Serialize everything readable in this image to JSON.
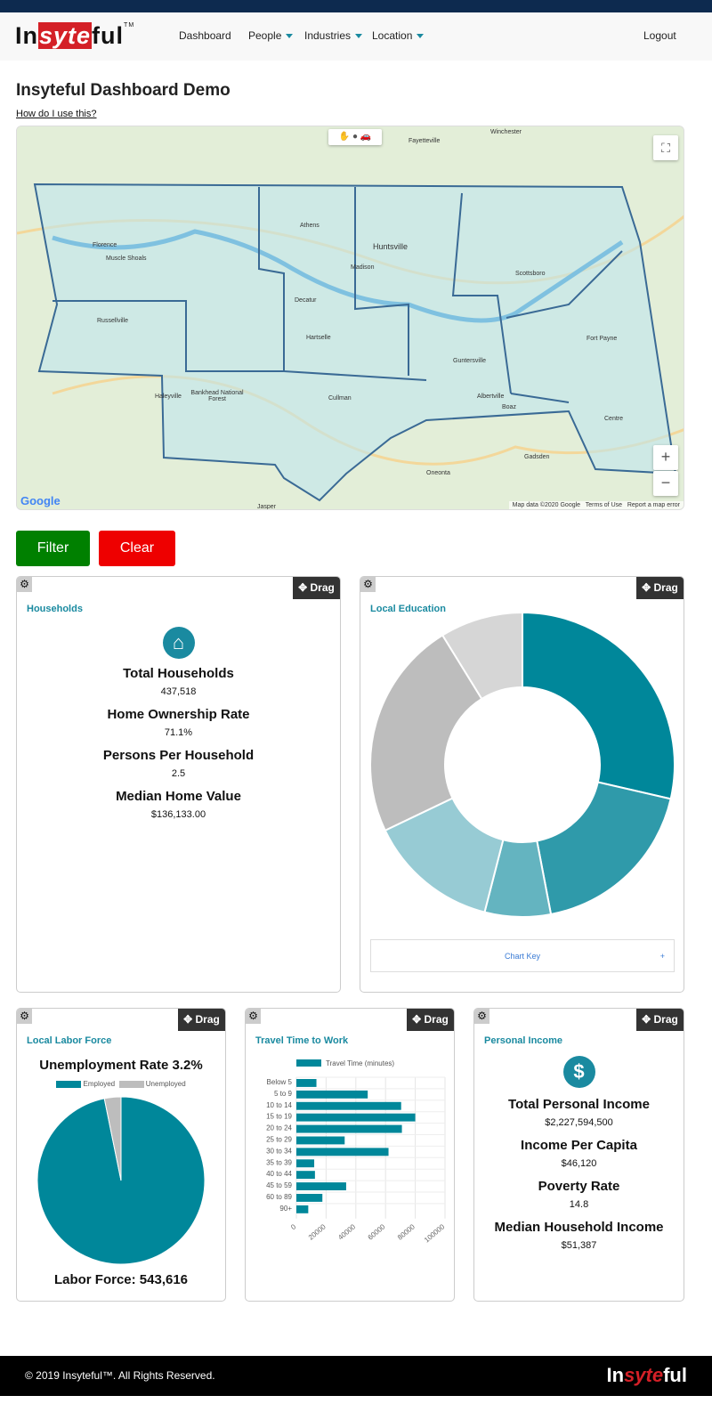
{
  "nav": {
    "logo": "Insyteful",
    "items": [
      "Dashboard",
      "People",
      "Industries",
      "Location"
    ],
    "logout": "Logout"
  },
  "page": {
    "title": "Insyteful Dashboard Demo",
    "help_link": "How do I use this?"
  },
  "map": {
    "places": [
      "Florence",
      "Muscle Shoals",
      "Athens",
      "Huntsville",
      "Decatur",
      "Scottsboro",
      "Cullman",
      "Guntersville",
      "Fort Payne",
      "Gadsden",
      "Albertville",
      "Russellville",
      "Haleyville",
      "Bankhead National Forest",
      "Jasper",
      "Oneonta",
      "Fayetteville",
      "Winchester",
      "Madison",
      "Hartselle",
      "Boaz",
      "Centre"
    ],
    "attribution": "Map data ©2020 Google",
    "terms": "Terms of Use",
    "report": "Report a map error",
    "google": "Google",
    "zoom_in": "+",
    "zoom_out": "−"
  },
  "actions": {
    "filter": "Filter",
    "clear": "Clear"
  },
  "widgets": {
    "drag": "Drag"
  },
  "households": {
    "title": "Households",
    "stats": [
      {
        "label": "Total Households",
        "value": "437,518"
      },
      {
        "label": "Home Ownership Rate",
        "value": "71.1%"
      },
      {
        "label": "Persons Per Household",
        "value": "2.5"
      },
      {
        "label": "Median Home Value",
        "value": "$136,133.00"
      }
    ]
  },
  "education": {
    "title": "Local Education",
    "chart_key": "Chart Key",
    "expand": "+"
  },
  "labor": {
    "title": "Local Labor Force",
    "headline": "Unemployment Rate 3.2%",
    "legend": [
      "Employed",
      "Unemployed"
    ],
    "footer": "Labor Force: 543,616"
  },
  "travel": {
    "title": "Travel Time to Work"
  },
  "income": {
    "title": "Personal Income",
    "stats": [
      {
        "label": "Total Personal Income",
        "value": "$2,227,594,500"
      },
      {
        "label": "Income Per Capita",
        "value": "$46,120"
      },
      {
        "label": "Poverty Rate",
        "value": "14.8"
      },
      {
        "label": "Median Household Income",
        "value": "$51,387"
      }
    ]
  },
  "footer": {
    "copyright": "© 2019 Insyteful™. All Rights Reserved.",
    "logo": "Insyteful"
  },
  "colors": {
    "teal": "#00879a",
    "filter": "#008000",
    "clear": "#ee0000"
  },
  "chart_data": [
    {
      "type": "pie",
      "title": "Local Education",
      "donut": true,
      "values": [
        28.6,
        18.4,
        7,
        13.9,
        23.3,
        8.8
      ],
      "colors": [
        "#00879a",
        "#2f9aaa",
        "#64b4c0",
        "#97cbd4",
        "#bdbdbd",
        "#d6d6d6"
      ]
    },
    {
      "type": "pie",
      "title": "Unemployment Rate 3.2%",
      "legend": "top",
      "series": [
        {
          "name": "Employed",
          "value": 96.8,
          "color": "#00879a"
        },
        {
          "name": "Unemployed",
          "value": 3.2,
          "color": "#bdbdbd"
        }
      ]
    },
    {
      "type": "bar",
      "orientation": "horizontal",
      "legend": "top",
      "series": [
        {
          "name": "Travel Time (minutes)",
          "values": [
            13500,
            48000,
            70500,
            80000,
            71000,
            32500,
            62000,
            12000,
            12500,
            33500,
            17500,
            8000
          ]
        }
      ],
      "categories": [
        "Below 5",
        "5 to 9",
        "10 to 14",
        "15 to 19",
        "20 to 24",
        "25 to 29",
        "30 to 34",
        "35 to 39",
        "40 to 44",
        "45 to 59",
        "60 to 89",
        "90+"
      ],
      "xlim": [
        0,
        100000
      ],
      "xticks": [
        "0",
        "20000",
        "40000",
        "60000",
        "80000",
        "100000"
      ],
      "grid": true
    }
  ]
}
